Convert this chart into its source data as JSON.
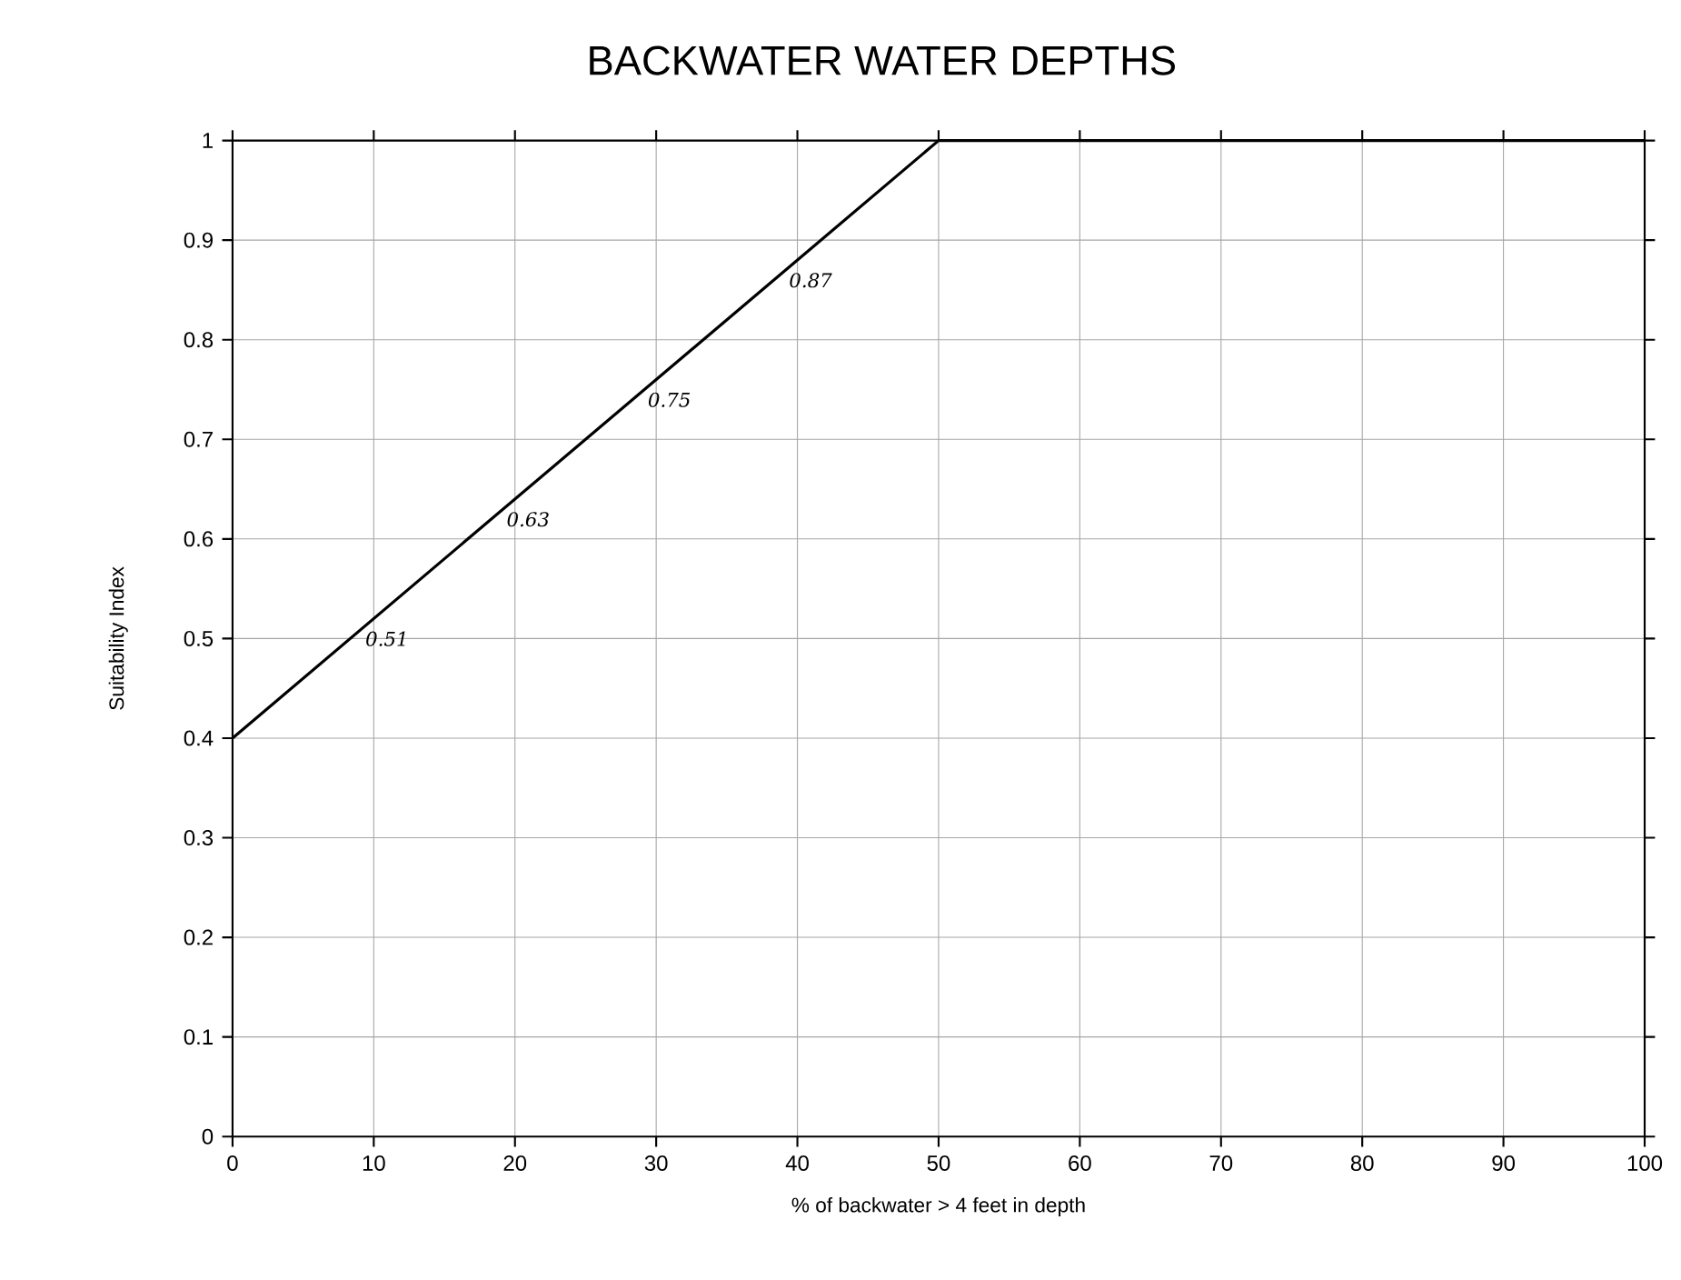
{
  "chart_data": {
    "type": "line",
    "title": "BACKWATER WATER DEPTHS",
    "xlabel": "% of backwater > 4 feet in depth",
    "ylabel": "Suitability Index",
    "x": [
      0,
      50,
      100
    ],
    "series": [
      {
        "color": "#000000",
        "values": [
          0.4,
          1,
          1
        ]
      }
    ],
    "xlim": [
      0,
      100
    ],
    "xticks": [
      0,
      10,
      20,
      30,
      40,
      50,
      60,
      70,
      80,
      90,
      100
    ],
    "ylim": [
      0,
      1
    ],
    "yticks": [
      0,
      0.1,
      0.2,
      0.3,
      0.4,
      0.5,
      0.6,
      0.7,
      0.8,
      0.9,
      1
    ],
    "grid": true,
    "annotations": [
      {
        "text": "0.87",
        "x": 39.2,
        "y": 0.87
      },
      {
        "text": "0.75",
        "x": 29.2,
        "y": 0.75
      },
      {
        "text": "0.63",
        "x": 19.2,
        "y": 0.63
      },
      {
        "text": "0.51",
        "x": 9.2,
        "y": 0.51
      }
    ]
  }
}
